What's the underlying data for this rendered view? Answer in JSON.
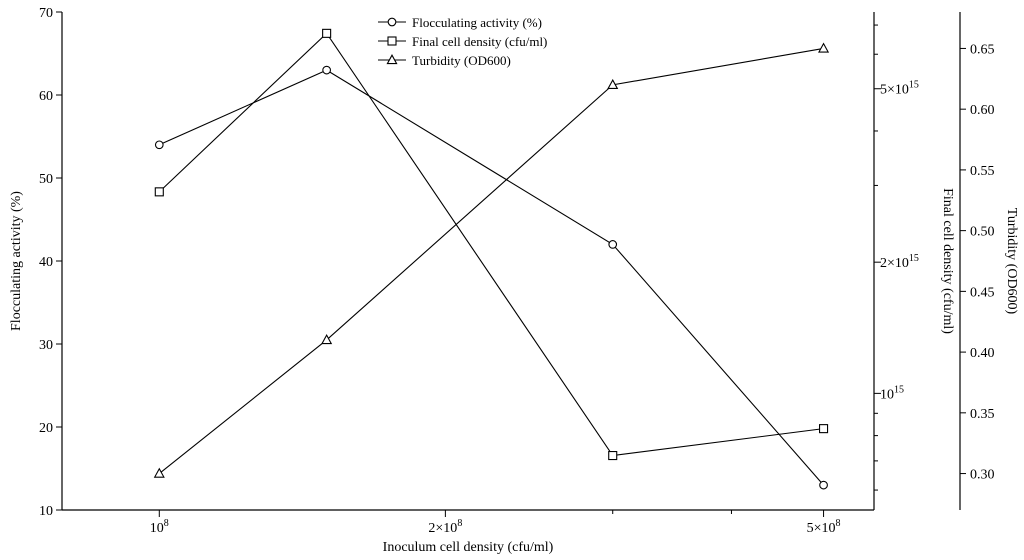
{
  "chart_data": {
    "type": "line",
    "xlabel": "Inoculum cell density (cfu/ml)",
    "x_scale": "log",
    "x_ticks": [
      {
        "value": 100000000,
        "base": "10",
        "exp": "8"
      },
      {
        "value": 200000000,
        "base": "2×10",
        "exp": "8"
      },
      {
        "value": 500000000,
        "base": "5×10",
        "exp": "8"
      }
    ],
    "x_minor_ticks": [
      300000000,
      400000000
    ],
    "xlim": [
      79000000,
      565000000
    ],
    "axes": {
      "left": {
        "label": "Flocculating activity (%)",
        "ylim": [
          10,
          70
        ],
        "ticks": [
          {
            "value": 10,
            "text": "10"
          },
          {
            "value": 20,
            "text": "20"
          },
          {
            "value": 30,
            "text": "30"
          },
          {
            "value": 40,
            "text": "40"
          },
          {
            "value": 50,
            "text": "50"
          },
          {
            "value": 60,
            "text": "60"
          },
          {
            "value": 70,
            "text": "70"
          }
        ]
      },
      "right1": {
        "label": "Final cell density (cfu/ml)",
        "scale": "log",
        "ylim": [
          540000000000000,
          7500000000000000
        ],
        "ticks": [
          {
            "value": 1000000000000000,
            "base": "10",
            "exp": "15"
          },
          {
            "value": 2000000000000000,
            "base": "2×10",
            "exp": "15"
          },
          {
            "value": 5000000000000000,
            "base": "5×10",
            "exp": "15"
          }
        ],
        "minor_ticks": [
          600000000000000,
          700000000000000,
          800000000000000,
          900000000000000,
          3000000000000000,
          4000000000000000,
          6000000000000000,
          7000000000000000
        ]
      },
      "right2": {
        "label": "Turbidity (OD600)",
        "ylim": [
          0.27,
          0.68
        ],
        "ticks": [
          {
            "value": 0.3,
            "text": "0.30"
          },
          {
            "value": 0.35,
            "text": "0.35"
          },
          {
            "value": 0.4,
            "text": "0.40"
          },
          {
            "value": 0.45,
            "text": "0.45"
          },
          {
            "value": 0.5,
            "text": "0.50"
          },
          {
            "value": 0.55,
            "text": "0.55"
          },
          {
            "value": 0.6,
            "text": "0.60"
          },
          {
            "value": 0.65,
            "text": "0.65"
          }
        ]
      }
    },
    "series": [
      {
        "name": "Flocculating activity (%)",
        "marker": "circle",
        "axis": "left",
        "x": [
          100000000,
          150000000,
          300000000,
          500000000
        ],
        "y": [
          54,
          63,
          42,
          13
        ]
      },
      {
        "name": "Final cell density (cfu/ml)",
        "marker": "square",
        "axis": "right1",
        "x": [
          100000000,
          150000000,
          300000000,
          500000000
        ],
        "y": [
          2900000000000000,
          6700000000000000,
          720000000000000,
          830000000000000
        ]
      },
      {
        "name": "Turbidity (OD600)",
        "marker": "triangle",
        "axis": "right2",
        "x": [
          100000000,
          150000000,
          300000000,
          500000000
        ],
        "y": [
          0.3,
          0.41,
          0.62,
          0.65
        ]
      }
    ],
    "legend_position": "top-center",
    "grid": false
  }
}
